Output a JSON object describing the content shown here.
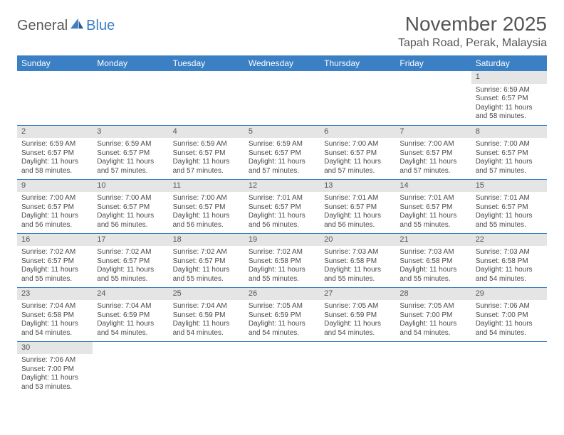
{
  "logo": {
    "text_a": "General",
    "text_b": "Blue"
  },
  "title": "November 2025",
  "location": "Tapah Road, Perak, Malaysia",
  "colors": {
    "header_bg": "#3b7fc4",
    "header_text": "#ffffff",
    "daynum_bg": "#e5e5e5",
    "cell_border": "#3b7fc4",
    "body_text": "#4a4a4a",
    "title_text": "#555555",
    "page_bg": "#ffffff"
  },
  "typography": {
    "month_title_pt": 28,
    "location_pt": 16,
    "weekday_header_pt": 12,
    "daynum_pt": 11,
    "cell_text_pt": 10,
    "font_family": "Arial"
  },
  "calendar": {
    "type": "table",
    "columns": [
      "Sunday",
      "Monday",
      "Tuesday",
      "Wednesday",
      "Thursday",
      "Friday",
      "Saturday"
    ],
    "weeks": [
      [
        null,
        null,
        null,
        null,
        null,
        null,
        {
          "n": "1",
          "sr": "Sunrise: 6:59 AM",
          "ss": "Sunset: 6:57 PM",
          "dl1": "Daylight: 11 hours",
          "dl2": "and 58 minutes."
        }
      ],
      [
        {
          "n": "2",
          "sr": "Sunrise: 6:59 AM",
          "ss": "Sunset: 6:57 PM",
          "dl1": "Daylight: 11 hours",
          "dl2": "and 58 minutes."
        },
        {
          "n": "3",
          "sr": "Sunrise: 6:59 AM",
          "ss": "Sunset: 6:57 PM",
          "dl1": "Daylight: 11 hours",
          "dl2": "and 57 minutes."
        },
        {
          "n": "4",
          "sr": "Sunrise: 6:59 AM",
          "ss": "Sunset: 6:57 PM",
          "dl1": "Daylight: 11 hours",
          "dl2": "and 57 minutes."
        },
        {
          "n": "5",
          "sr": "Sunrise: 6:59 AM",
          "ss": "Sunset: 6:57 PM",
          "dl1": "Daylight: 11 hours",
          "dl2": "and 57 minutes."
        },
        {
          "n": "6",
          "sr": "Sunrise: 7:00 AM",
          "ss": "Sunset: 6:57 PM",
          "dl1": "Daylight: 11 hours",
          "dl2": "and 57 minutes."
        },
        {
          "n": "7",
          "sr": "Sunrise: 7:00 AM",
          "ss": "Sunset: 6:57 PM",
          "dl1": "Daylight: 11 hours",
          "dl2": "and 57 minutes."
        },
        {
          "n": "8",
          "sr": "Sunrise: 7:00 AM",
          "ss": "Sunset: 6:57 PM",
          "dl1": "Daylight: 11 hours",
          "dl2": "and 57 minutes."
        }
      ],
      [
        {
          "n": "9",
          "sr": "Sunrise: 7:00 AM",
          "ss": "Sunset: 6:57 PM",
          "dl1": "Daylight: 11 hours",
          "dl2": "and 56 minutes."
        },
        {
          "n": "10",
          "sr": "Sunrise: 7:00 AM",
          "ss": "Sunset: 6:57 PM",
          "dl1": "Daylight: 11 hours",
          "dl2": "and 56 minutes."
        },
        {
          "n": "11",
          "sr": "Sunrise: 7:00 AM",
          "ss": "Sunset: 6:57 PM",
          "dl1": "Daylight: 11 hours",
          "dl2": "and 56 minutes."
        },
        {
          "n": "12",
          "sr": "Sunrise: 7:01 AM",
          "ss": "Sunset: 6:57 PM",
          "dl1": "Daylight: 11 hours",
          "dl2": "and 56 minutes."
        },
        {
          "n": "13",
          "sr": "Sunrise: 7:01 AM",
          "ss": "Sunset: 6:57 PM",
          "dl1": "Daylight: 11 hours",
          "dl2": "and 56 minutes."
        },
        {
          "n": "14",
          "sr": "Sunrise: 7:01 AM",
          "ss": "Sunset: 6:57 PM",
          "dl1": "Daylight: 11 hours",
          "dl2": "and 55 minutes."
        },
        {
          "n": "15",
          "sr": "Sunrise: 7:01 AM",
          "ss": "Sunset: 6:57 PM",
          "dl1": "Daylight: 11 hours",
          "dl2": "and 55 minutes."
        }
      ],
      [
        {
          "n": "16",
          "sr": "Sunrise: 7:02 AM",
          "ss": "Sunset: 6:57 PM",
          "dl1": "Daylight: 11 hours",
          "dl2": "and 55 minutes."
        },
        {
          "n": "17",
          "sr": "Sunrise: 7:02 AM",
          "ss": "Sunset: 6:57 PM",
          "dl1": "Daylight: 11 hours",
          "dl2": "and 55 minutes."
        },
        {
          "n": "18",
          "sr": "Sunrise: 7:02 AM",
          "ss": "Sunset: 6:57 PM",
          "dl1": "Daylight: 11 hours",
          "dl2": "and 55 minutes."
        },
        {
          "n": "19",
          "sr": "Sunrise: 7:02 AM",
          "ss": "Sunset: 6:58 PM",
          "dl1": "Daylight: 11 hours",
          "dl2": "and 55 minutes."
        },
        {
          "n": "20",
          "sr": "Sunrise: 7:03 AM",
          "ss": "Sunset: 6:58 PM",
          "dl1": "Daylight: 11 hours",
          "dl2": "and 55 minutes."
        },
        {
          "n": "21",
          "sr": "Sunrise: 7:03 AM",
          "ss": "Sunset: 6:58 PM",
          "dl1": "Daylight: 11 hours",
          "dl2": "and 55 minutes."
        },
        {
          "n": "22",
          "sr": "Sunrise: 7:03 AM",
          "ss": "Sunset: 6:58 PM",
          "dl1": "Daylight: 11 hours",
          "dl2": "and 54 minutes."
        }
      ],
      [
        {
          "n": "23",
          "sr": "Sunrise: 7:04 AM",
          "ss": "Sunset: 6:58 PM",
          "dl1": "Daylight: 11 hours",
          "dl2": "and 54 minutes."
        },
        {
          "n": "24",
          "sr": "Sunrise: 7:04 AM",
          "ss": "Sunset: 6:59 PM",
          "dl1": "Daylight: 11 hours",
          "dl2": "and 54 minutes."
        },
        {
          "n": "25",
          "sr": "Sunrise: 7:04 AM",
          "ss": "Sunset: 6:59 PM",
          "dl1": "Daylight: 11 hours",
          "dl2": "and 54 minutes."
        },
        {
          "n": "26",
          "sr": "Sunrise: 7:05 AM",
          "ss": "Sunset: 6:59 PM",
          "dl1": "Daylight: 11 hours",
          "dl2": "and 54 minutes."
        },
        {
          "n": "27",
          "sr": "Sunrise: 7:05 AM",
          "ss": "Sunset: 6:59 PM",
          "dl1": "Daylight: 11 hours",
          "dl2": "and 54 minutes."
        },
        {
          "n": "28",
          "sr": "Sunrise: 7:05 AM",
          "ss": "Sunset: 7:00 PM",
          "dl1": "Daylight: 11 hours",
          "dl2": "and 54 minutes."
        },
        {
          "n": "29",
          "sr": "Sunrise: 7:06 AM",
          "ss": "Sunset: 7:00 PM",
          "dl1": "Daylight: 11 hours",
          "dl2": "and 54 minutes."
        }
      ],
      [
        {
          "n": "30",
          "sr": "Sunrise: 7:06 AM",
          "ss": "Sunset: 7:00 PM",
          "dl1": "Daylight: 11 hours",
          "dl2": "and 53 minutes."
        },
        null,
        null,
        null,
        null,
        null,
        null
      ]
    ]
  }
}
